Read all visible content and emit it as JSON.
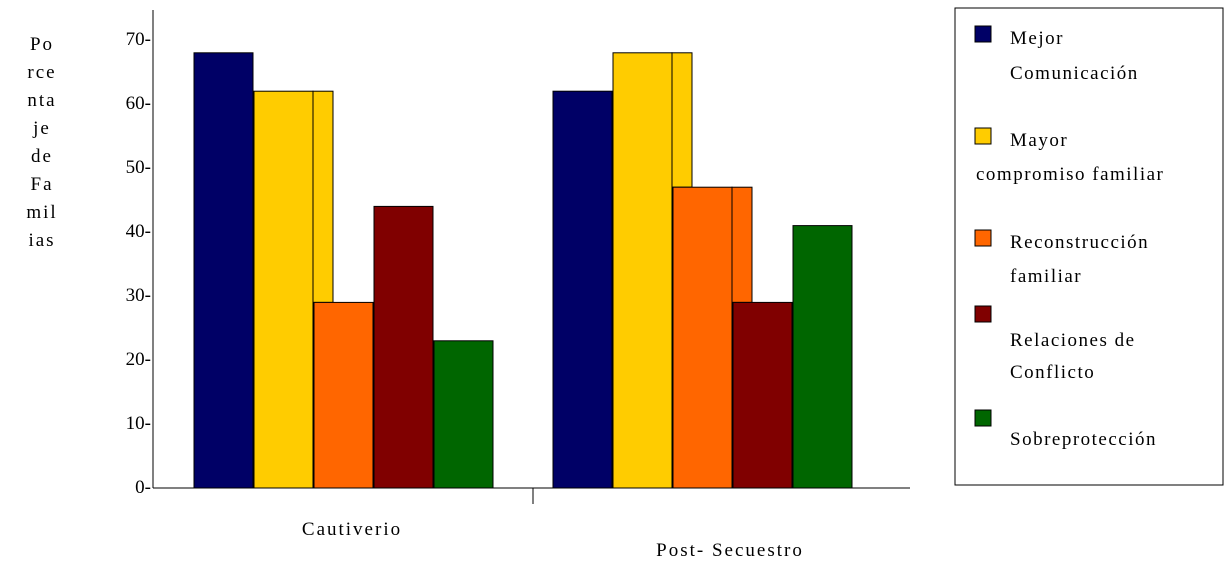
{
  "chart_data": {
    "type": "bar",
    "categories": [
      "Cautiverio",
      "Post- Secuestro"
    ],
    "series": [
      {
        "name": "Mejor Comunicación",
        "color": "#000066",
        "values": [
          68,
          62
        ]
      },
      {
        "name": "Mayor compromiso familiar",
        "color": "#FFCC00",
        "values": [
          62,
          68
        ]
      },
      {
        "name": "Reconstrucción familiar",
        "color": "#FF6600",
        "values": [
          29,
          47
        ]
      },
      {
        "name": "Relaciones de Conflicto",
        "color": "#800000",
        "values": [
          44,
          29
        ]
      },
      {
        "name": "Sobreprotección",
        "color": "#006600",
        "values": [
          23,
          41
        ]
      }
    ],
    "yticks": [
      "0-",
      "10-",
      "20-",
      "30-",
      "40-",
      "50-",
      "60-",
      "70-"
    ],
    "ylabel_lines": [
      "Po",
      "rce",
      "nta",
      "je",
      "de",
      "Fa",
      "mil",
      "ias"
    ],
    "legend_lines": [
      [
        "Mejor",
        "Comunicación"
      ],
      [
        "Mayor",
        "compromiso familiar"
      ],
      [
        "Reconstrucción",
        "familiar"
      ],
      [
        "",
        "Relaciones de",
        "Conflicto"
      ],
      [
        "",
        "Sobreprotección"
      ]
    ],
    "ylim": [
      0,
      70
    ],
    "grid": false,
    "legend_position": "right"
  }
}
